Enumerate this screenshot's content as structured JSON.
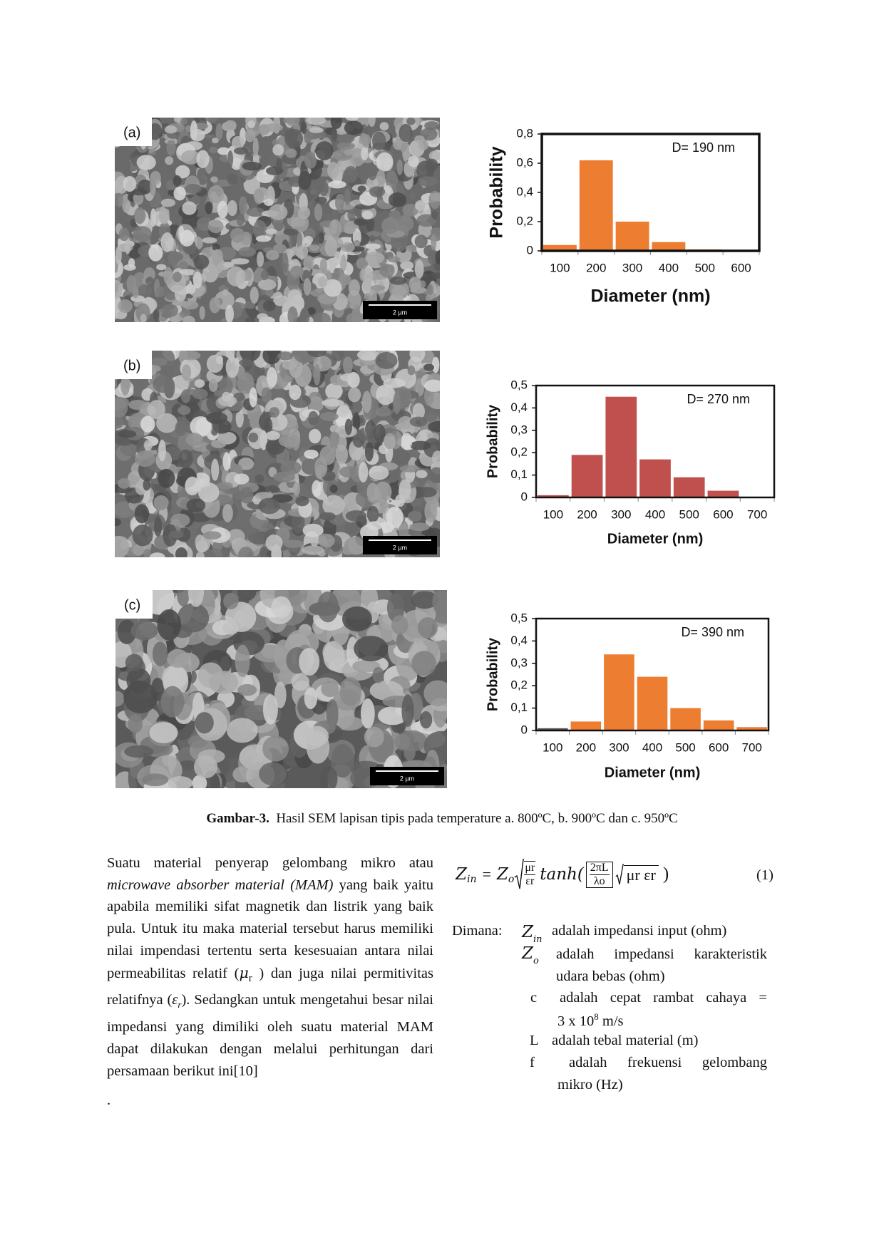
{
  "chart_data": [
    {
      "type": "bar",
      "annotation": "D= 190 nm",
      "xlabel": "Diameter (nm)",
      "ylabel": "Probability",
      "categories": [
        "100",
        "200",
        "300",
        "400",
        "500",
        "600"
      ],
      "values": [
        0.04,
        0.62,
        0.2,
        0.06,
        0.01,
        0
      ],
      "color": "#ed7d31",
      "ylim": [
        0,
        0.8
      ],
      "yticks": [
        0,
        {
          "value": 0.2,
          "label": "0,2"
        },
        {
          "value": 0.4,
          "label": "0,4"
        },
        {
          "value": 0.6,
          "label": "0,6"
        },
        {
          "value": 0.8,
          "label": "0,8"
        }
      ]
    },
    {
      "type": "bar",
      "annotation": "D= 270 nm",
      "xlabel": "Diameter (nm)",
      "ylabel": "Probability",
      "categories": [
        "100",
        "200",
        "300",
        "400",
        "500",
        "600",
        "700"
      ],
      "values": [
        0.01,
        0.19,
        0.45,
        0.17,
        0.09,
        0.03,
        0
      ],
      "color": "#c0504d",
      "ylim": [
        0,
        0.5
      ],
      "yticks": [
        0,
        {
          "value": 0.1,
          "label": "0,1"
        },
        {
          "value": 0.2,
          "label": "0,2"
        },
        {
          "value": 0.3,
          "label": "0,3"
        },
        {
          "value": 0.4,
          "label": "0,4"
        },
        {
          "value": 0.5,
          "label": "0,5"
        }
      ]
    },
    {
      "type": "bar",
      "annotation": "D= 390 nm",
      "xlabel": "Diameter (nm)",
      "ylabel": "Probability",
      "categories": [
        "100",
        "200",
        "300",
        "400",
        "500",
        "600",
        "700"
      ],
      "values": [
        0.01,
        0.04,
        0.34,
        0.24,
        0.1,
        0.045,
        0.015
      ],
      "colors": [
        "#595959",
        "#ed7d31",
        "#ed7d31",
        "#ed7d31",
        "#ed7d31",
        "#ed7d31",
        "#ed7d31"
      ],
      "ylim": [
        0,
        0.5
      ],
      "yticks": [
        0,
        {
          "value": 0.1,
          "label": "0,1"
        },
        {
          "value": 0.2,
          "label": "0,2"
        },
        {
          "value": 0.3,
          "label": "0,3"
        },
        {
          "value": 0.4,
          "label": "0,4"
        },
        {
          "value": 0.5,
          "label": "0,5"
        }
      ]
    }
  ],
  "images": [
    {
      "label": "(a)",
      "scale_bar": "2 µm"
    },
    {
      "label": "(b)",
      "scale_bar": "2 µm"
    },
    {
      "label": "(c)",
      "scale_bar": "2 µm"
    }
  ],
  "caption": {
    "label": "Gambar-3.",
    "text": "Hasil SEM lapisan tipis pada temperature a. 800ºC, b. 900ºC dan c. 950ºC"
  },
  "paragraph": [
    "Suatu material penyerap gelombang mikro atau ",
    "microwave absorber material (MAM)",
    " yang baik yaitu apabila memiliki sifat magnetik dan listrik yang baik pula. Untuk itu maka material tersebut harus memiliki nilai impendasi tertentu serta kesesuaian antara nilai permeabilitas relatif (",
    "μ",
    "r",
    " ) dan juga nilai permitivitas relatifnya (",
    "ε",
    "r",
    "). Sedangkan untuk mengetahui besar nilai impedansi yang dimiliki oleh suatu material MAM dapat dilakukan dengan melalui perhitungan dari persamaan berikut ini[10]",
    "."
  ],
  "equation": {
    "z": "Z",
    "z_sub": "in",
    "equals": "=",
    "z0": "Z",
    "z0_sub": "o",
    "ratio_num": "μr",
    "ratio_den": "εr",
    "func": "tanh(",
    "inner_num": "2πL",
    "inner_den": "λo",
    "root": "μr εr",
    "close": ")",
    "number": "(1)"
  },
  "definitions": {
    "intro": "Dimana:",
    "rows": [
      {
        "symbol": "Z",
        "symbol_sub": "in",
        "desc": [
          "adalah impedansi input (ohm)"
        ]
      },
      {
        "symbol": "Z",
        "symbol_sub": "o",
        "desc": [
          "adalah impedansi karakteristik",
          "udara bebas (ohm)"
        ]
      },
      {
        "symbol": "c",
        "desc": [
          "adalah cepat rambat cahaya ="
        ],
        "value": {
          "base": "3 x 10",
          "exp": "8",
          "unit": "m/s"
        }
      },
      {
        "symbol": "L",
        "desc": [
          "adalah tebal material (m)"
        ]
      },
      {
        "symbol": "f",
        "desc": [
          "adalah frekuensi gelombang",
          "mikro (Hz)"
        ]
      }
    ]
  }
}
